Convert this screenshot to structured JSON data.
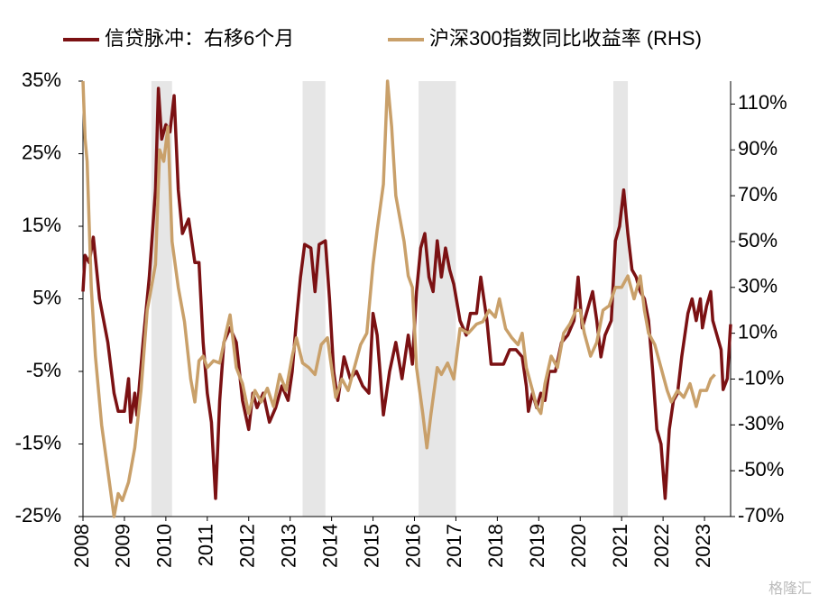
{
  "chart_data": {
    "type": "line",
    "series": [
      {
        "name": "信贷脉冲：右移6个月",
        "color": "#7b1113",
        "axis": "y",
        "x": [
          2008.0,
          2008.05,
          2008.15,
          2008.25,
          2008.4,
          2008.6,
          2008.75,
          2008.85,
          2009.0,
          2009.1,
          2009.15,
          2009.25,
          2009.3,
          2009.45,
          2009.6,
          2009.75,
          2009.82,
          2009.9,
          2010.0,
          2010.1,
          2010.2,
          2010.3,
          2010.4,
          2010.55,
          2010.7,
          2010.8,
          2010.9,
          2011.0,
          2011.1,
          2011.2,
          2011.3,
          2011.4,
          2011.55,
          2011.7,
          2011.85,
          2012.0,
          2012.1,
          2012.2,
          2012.35,
          2012.5,
          2012.65,
          2012.8,
          2012.95,
          2013.05,
          2013.15,
          2013.25,
          2013.35,
          2013.5,
          2013.6,
          2013.7,
          2013.85,
          2013.95,
          2014.05,
          2014.15,
          2014.3,
          2014.45,
          2014.6,
          2014.75,
          2014.9,
          2015.0,
          2015.1,
          2015.25,
          2015.4,
          2015.55,
          2015.7,
          2015.85,
          2015.95,
          2016.05,
          2016.15,
          2016.25,
          2016.35,
          2016.45,
          2016.55,
          2016.65,
          2016.75,
          2016.85,
          2016.95,
          2017.1,
          2017.25,
          2017.35,
          2017.5,
          2017.6,
          2017.75,
          2017.85,
          2018.0,
          2018.15,
          2018.3,
          2018.45,
          2018.6,
          2018.7,
          2018.75,
          2018.85,
          2018.95,
          2019.05,
          2019.15,
          2019.25,
          2019.4,
          2019.55,
          2019.7,
          2019.85,
          2019.95,
          2020.05,
          2020.15,
          2020.3,
          2020.4,
          2020.5,
          2020.6,
          2020.75,
          2020.85,
          2020.95,
          2021.05,
          2021.15,
          2021.25,
          2021.35,
          2021.45,
          2021.55,
          2021.65,
          2021.75,
          2021.85,
          2021.95,
          2022.05,
          2022.15,
          2022.25,
          2022.35,
          2022.45,
          2022.6,
          2022.7,
          2022.8,
          2022.9,
          2022.95,
          2023.05,
          2023.15,
          2023.2,
          2023.3,
          2023.4,
          2023.45,
          2023.55,
          2023.63
        ],
        "values": [
          6,
          11,
          10,
          13.5,
          5,
          -1,
          -8,
          -10.5,
          -10.5,
          -6,
          -12,
          -8,
          -11,
          -1,
          8,
          20,
          34,
          27,
          29,
          28,
          33,
          20,
          14,
          16,
          10,
          10,
          -1,
          -8,
          -12,
          -22.5,
          -9,
          -1,
          1,
          -1,
          -9,
          -13,
          -8,
          -10,
          -8,
          -12,
          -10,
          -7,
          -9,
          -5,
          2,
          8,
          12.5,
          12,
          6,
          12.5,
          13,
          5,
          -5,
          -9,
          -3,
          -6,
          -5,
          -7,
          -8,
          3,
          0,
          -11,
          -5,
          -1,
          -6,
          0,
          -4,
          6,
          12,
          14,
          8,
          6,
          13,
          8,
          12,
          9,
          7,
          2,
          0,
          3,
          3,
          8,
          2,
          -4,
          -4,
          -4,
          -2,
          -2,
          -3,
          -7,
          -10.5,
          -8,
          -10,
          -8,
          -9,
          -5,
          -5,
          -1,
          0,
          2,
          8,
          1,
          3,
          6,
          2,
          -3,
          0,
          2,
          13,
          15,
          20,
          14,
          9,
          8,
          6,
          5,
          2,
          -5,
          -13,
          -15,
          -22.5,
          -13,
          -9,
          -8,
          -3,
          3,
          5,
          2,
          5,
          1,
          4,
          6,
          2,
          0,
          -2,
          -7.5,
          -6,
          1.5
        ]
      },
      {
        "name": "沪深300指数同比收益率 (RHS)",
        "color": "#c9a06a",
        "axis": "y2",
        "x": [
          2008.0,
          2008.05,
          2008.1,
          2008.2,
          2008.3,
          2008.45,
          2008.6,
          2008.75,
          2008.85,
          2008.95,
          2009.1,
          2009.25,
          2009.4,
          2009.55,
          2009.65,
          2009.75,
          2009.85,
          2009.95,
          2010.05,
          2010.15,
          2010.3,
          2010.45,
          2010.6,
          2010.7,
          2010.8,
          2010.9,
          2011.0,
          2011.15,
          2011.3,
          2011.45,
          2011.55,
          2011.7,
          2011.85,
          2012.0,
          2012.15,
          2012.3,
          2012.45,
          2012.6,
          2012.75,
          2012.9,
          2013.05,
          2013.15,
          2013.3,
          2013.45,
          2013.6,
          2013.75,
          2013.9,
          2014.0,
          2014.1,
          2014.25,
          2014.4,
          2014.55,
          2014.7,
          2014.85,
          2015.0,
          2015.1,
          2015.25,
          2015.35,
          2015.45,
          2015.55,
          2015.65,
          2015.75,
          2015.85,
          2015.95,
          2016.05,
          2016.2,
          2016.3,
          2016.4,
          2016.55,
          2016.65,
          2016.8,
          2016.95,
          2017.1,
          2017.3,
          2017.5,
          2017.65,
          2017.8,
          2017.95,
          2018.05,
          2018.2,
          2018.35,
          2018.5,
          2018.6,
          2018.7,
          2018.85,
          2018.95,
          2019.05,
          2019.15,
          2019.3,
          2019.45,
          2019.6,
          2019.75,
          2019.9,
          2020.0,
          2020.1,
          2020.25,
          2020.4,
          2020.55,
          2020.7,
          2020.85,
          2021.0,
          2021.15,
          2021.3,
          2021.45,
          2021.55,
          2021.65,
          2021.8,
          2021.95,
          2022.1,
          2022.2,
          2022.35,
          2022.5,
          2022.65,
          2022.8,
          2022.9,
          2023.05,
          2023.15,
          2023.25
        ],
        "values": [
          120,
          95,
          85,
          30,
          0,
          -30,
          -50,
          -70,
          -60,
          -63,
          -55,
          -40,
          -15,
          20,
          30,
          40,
          90,
          85,
          100,
          50,
          30,
          15,
          -10,
          -20,
          -2,
          0,
          -5,
          -2,
          -3,
          10,
          18,
          -5,
          -12,
          -25,
          -15,
          -20,
          -14,
          -22,
          -8,
          -15,
          0,
          8,
          -3,
          -5,
          -8,
          5,
          8,
          -5,
          -18,
          -10,
          -15,
          -5,
          5,
          10,
          40,
          55,
          75,
          120,
          100,
          70,
          60,
          50,
          35,
          30,
          -5,
          -25,
          -40,
          -25,
          -5,
          -8,
          -3,
          -10,
          12,
          10,
          14,
          15,
          20,
          17,
          25,
          12,
          8,
          5,
          10,
          -5,
          -15,
          -22,
          -25,
          -12,
          0,
          -5,
          10,
          14,
          20,
          20,
          10,
          0,
          6,
          20,
          22,
          30,
          30,
          35,
          25,
          35,
          20,
          10,
          5,
          -5,
          -15,
          -20,
          -15,
          -18,
          -12,
          -22,
          -15,
          -15,
          -10,
          -8
        ]
      }
    ],
    "xlim": [
      2008,
      2023.63
    ],
    "xticks": [
      2008,
      2009,
      2010,
      2011,
      2012,
      2013,
      2014,
      2015,
      2016,
      2017,
      2018,
      2019,
      2020,
      2021,
      2022,
      2023
    ],
    "ylim": [
      -25,
      35
    ],
    "yticks": [
      {
        "value": -25,
        "label": "-25%"
      },
      {
        "value": -15,
        "label": "-15%"
      },
      {
        "value": -5,
        "label": "-5%"
      },
      {
        "value": 5,
        "label": "5%"
      },
      {
        "value": 15,
        "label": "15%"
      },
      {
        "value": 25,
        "label": "25%"
      },
      {
        "value": 35,
        "label": "35%"
      }
    ],
    "y2lim": [
      -70,
      120
    ],
    "y2ticks": [
      {
        "value": -70,
        "label": "-70%"
      },
      {
        "value": -50,
        "label": "-50%"
      },
      {
        "value": -30,
        "label": "-30%"
      },
      {
        "value": -10,
        "label": "-10%"
      },
      {
        "value": 10,
        "label": "10%"
      },
      {
        "value": 30,
        "label": "30%"
      },
      {
        "value": 50,
        "label": "50%"
      },
      {
        "value": 70,
        "label": "70%"
      },
      {
        "value": 90,
        "label": "90%"
      },
      {
        "value": 110,
        "label": "110%"
      }
    ],
    "shaded_periods": [
      [
        2009.65,
        2010.15
      ],
      [
        2013.3,
        2013.85
      ],
      [
        2016.1,
        2017.0
      ],
      [
        2020.8,
        2021.15
      ]
    ],
    "shade_color": "#e6e6e6",
    "legend": "top",
    "watermark": "格隆汇"
  }
}
